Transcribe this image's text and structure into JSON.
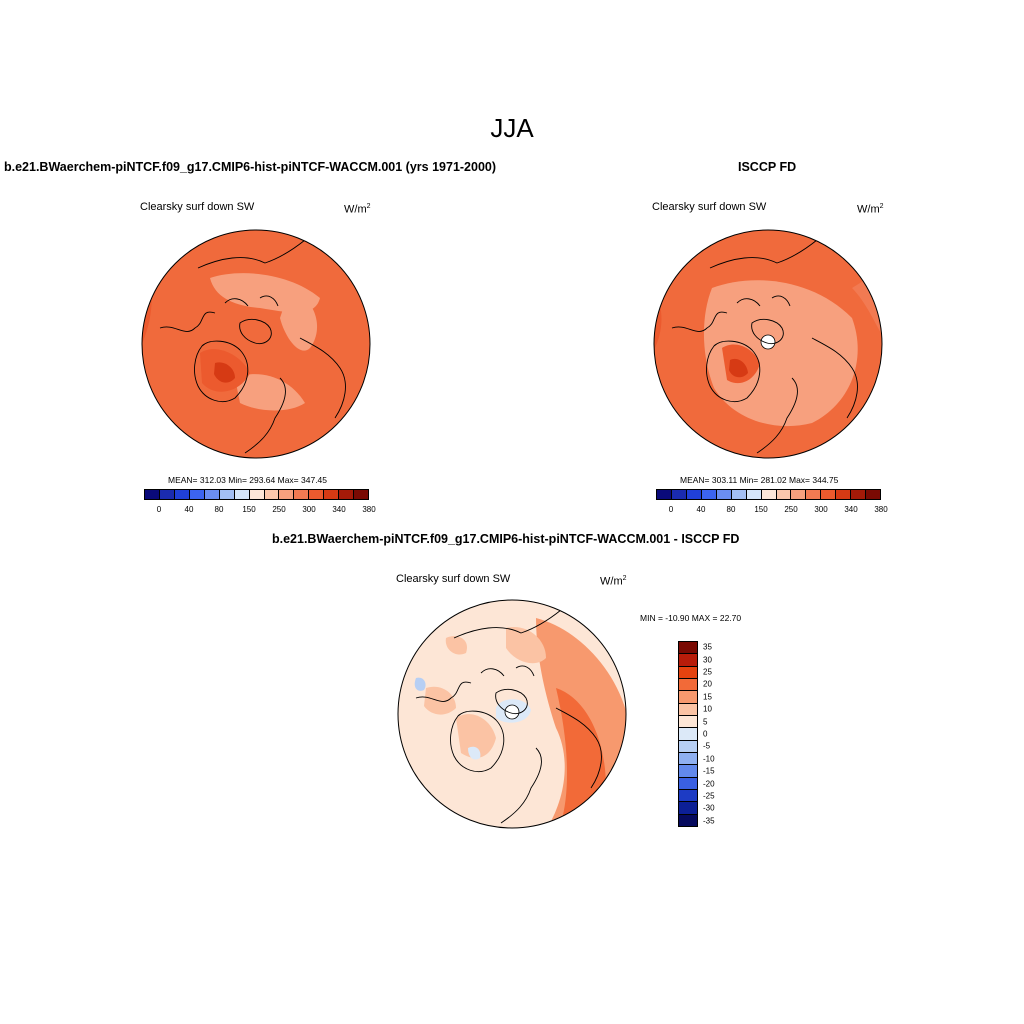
{
  "figure": {
    "title": "JJA"
  },
  "panels": {
    "model": {
      "title": "b.e21.BWaerchem-piNTCF.f09_g17.CMIP6-hist-piNTCF-WACCM.001 (yrs 1971-2000)",
      "variable": "Clearsky surf down SW",
      "units_base": "W/m",
      "units_exp": "2",
      "stats": "MEAN= 312.03  Min= 293.64  Max= 347.45"
    },
    "obs": {
      "title": "ISCCP FD",
      "variable": "Clearsky surf down SW",
      "units_base": "W/m",
      "units_exp": "2",
      "stats": "MEAN= 303.11  Min= 281.02  Max= 344.75"
    },
    "diff": {
      "title": "b.e21.BWaerchem-piNTCF.f09_g17.CMIP6-hist-piNTCF-WACCM.001 - ISCCP FD",
      "variable": "Clearsky surf down SW",
      "units_base": "W/m",
      "units_exp": "2",
      "stats": "MIN = -10.90 MAX =  22.70"
    }
  },
  "colorbar_abs": {
    "colors": [
      "#0a0a7a",
      "#1a2bb0",
      "#2040d8",
      "#3c64f0",
      "#6b8ef2",
      "#a3bff5",
      "#d6e6fb",
      "#fde6d8",
      "#fbc7ac",
      "#f7a07e",
      "#f27a52",
      "#ec5a2e",
      "#d63a14",
      "#a51a08",
      "#7a0a03"
    ],
    "tick_labels": [
      "0",
      "40",
      "80",
      "150",
      "250",
      "300",
      "340",
      "380"
    ]
  },
  "colorbar_diff": {
    "colors": [
      "#7a0a03",
      "#b81c0a",
      "#e5420f",
      "#f26a38",
      "#f7996e",
      "#fbc3a4",
      "#fde6d6",
      "#dce9f8",
      "#b7cff4",
      "#8fb0f1",
      "#6289ec",
      "#3a60e2",
      "#1d3bc4",
      "#0c1f96",
      "#060a5e"
    ],
    "tick_labels": [
      "35",
      "30",
      "25",
      "20",
      "15",
      "10",
      "5",
      "0",
      "-5",
      "-10",
      "-15",
      "-20",
      "-25",
      "-30",
      "-35"
    ]
  }
}
